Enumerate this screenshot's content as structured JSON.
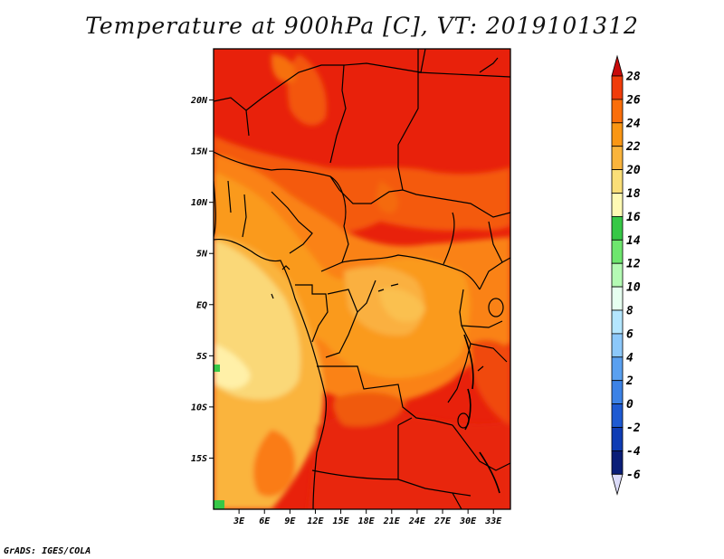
{
  "title": "Temperature at 900hPa [C], VT: 2019101312",
  "credit": "GrADS: IGES/COLA",
  "map": {
    "lon_range": [
      0,
      35
    ],
    "lat_range": [
      -20,
      25
    ],
    "x_ticks": [
      {
        "lon": 3,
        "label": "3E"
      },
      {
        "lon": 6,
        "label": "6E"
      },
      {
        "lon": 9,
        "label": "9E"
      },
      {
        "lon": 12,
        "label": "12E"
      },
      {
        "lon": 15,
        "label": "15E"
      },
      {
        "lon": 18,
        "label": "18E"
      },
      {
        "lon": 21,
        "label": "21E"
      },
      {
        "lon": 24,
        "label": "24E"
      },
      {
        "lon": 27,
        "label": "27E"
      },
      {
        "lon": 30,
        "label": "30E"
      },
      {
        "lon": 33,
        "label": "33E"
      }
    ],
    "y_ticks": [
      {
        "lat": 20,
        "label": "20N"
      },
      {
        "lat": 15,
        "label": "15N"
      },
      {
        "lat": 10,
        "label": "10N"
      },
      {
        "lat": 5,
        "label": "5N"
      },
      {
        "lat": 0,
        "label": "EQ"
      },
      {
        "lat": -5,
        "label": "5S"
      },
      {
        "lat": -10,
        "label": "10S"
      },
      {
        "lat": -15,
        "label": "15S"
      }
    ]
  },
  "colorbar": {
    "levels": [
      {
        "value": "28",
        "color": "#dc1e0a"
      },
      {
        "value": "26",
        "color": "#f03c0a"
      },
      {
        "value": "24",
        "color": "#fa6e0a"
      },
      {
        "value": "22",
        "color": "#fa9614"
      },
      {
        "value": "20",
        "color": "#fab43c"
      },
      {
        "value": "18",
        "color": "#fade78"
      },
      {
        "value": "16",
        "color": "#fffab4"
      },
      {
        "value": "14",
        "color": "#36c846"
      },
      {
        "value": "12",
        "color": "#6ee66e"
      },
      {
        "value": "10",
        "color": "#b4fab4"
      },
      {
        "value": "8",
        "color": "#e6fff0"
      },
      {
        "value": "6",
        "color": "#b4e6ff"
      },
      {
        "value": "4",
        "color": "#8cc8fa"
      },
      {
        "value": "2",
        "color": "#5aa0f0"
      },
      {
        "value": "0",
        "color": "#3c82e6"
      },
      {
        "value": "-2",
        "color": "#1e5ad2"
      },
      {
        "value": "-4",
        "color": "#0f3cb4"
      },
      {
        "value": "-6",
        "color": "#0a1e78"
      }
    ],
    "top_color": "#c80a0a",
    "bottom_color": "#dcdcfa"
  }
}
